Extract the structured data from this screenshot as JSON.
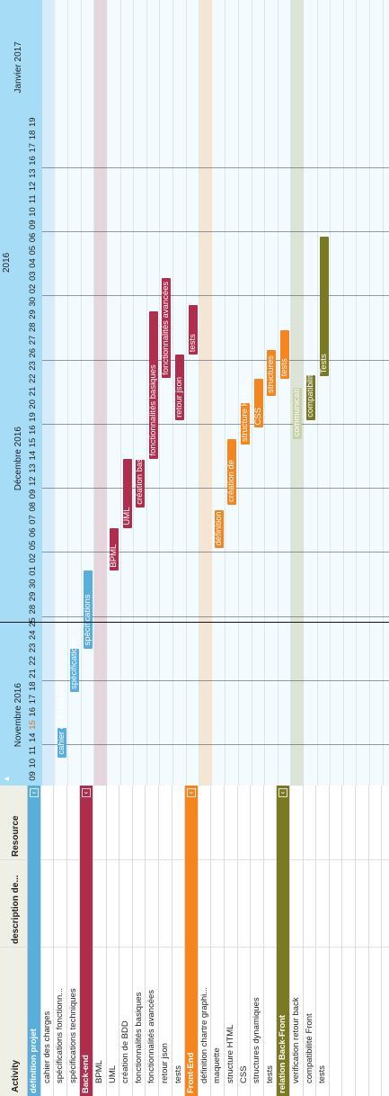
{
  "header": {
    "activity": "Activity",
    "description": "description de...",
    "resource": "Resource"
  },
  "rows": [
    {
      "label": "définition projet",
      "group": true,
      "color": "#5aaedb"
    },
    {
      "label": "cahier des charges"
    },
    {
      "label": "spécifications fonctionn..."
    },
    {
      "label": "spécifications techniques"
    },
    {
      "label": "Back-end",
      "group": true,
      "color": "#b02e4d"
    },
    {
      "label": "BPML"
    },
    {
      "label": "UML"
    },
    {
      "label": "création de BDD"
    },
    {
      "label": "fonctionnalités basiques"
    },
    {
      "label": "fonctionnalités avancées"
    },
    {
      "label": "retour json"
    },
    {
      "label": "tests"
    },
    {
      "label": "Front-End",
      "group": true,
      "color": "#f5851f"
    },
    {
      "label": "définition chartre graphi..."
    },
    {
      "label": "maquette"
    },
    {
      "label": "structure HTML"
    },
    {
      "label": "CSS"
    },
    {
      "label": "structures dynamiques"
    },
    {
      "label": "tests"
    },
    {
      "label": "relation Back-Front",
      "group": true,
      "color": "#7a7a25"
    },
    {
      "label": "verification retour back"
    },
    {
      "label": "compatibilité Front"
    },
    {
      "label": "tests"
    }
  ],
  "timeline": {
    "years": [
      {
        "label": "2016",
        "day": 40
      },
      {
        "label": "2017",
        "day": 98
      }
    ],
    "months": [
      {
        "label": "Novembre 2016",
        "day": 3
      },
      {
        "label": "Décembre 2016",
        "day": 23
      },
      {
        "label": "Janvier 2017",
        "day": 54
      }
    ],
    "day_labels": [
      "09",
      "10",
      "11",
      "14",
      "15",
      "16",
      "17",
      "18",
      "21",
      "22",
      "23",
      "24",
      "25",
      "28",
      "29",
      "30",
      "01",
      "02",
      "05",
      "06",
      "07",
      "08",
      "09",
      "12",
      "13",
      "14",
      "15",
      "16",
      "19",
      "20",
      "21",
      "22",
      "23",
      "26",
      "27",
      "28",
      "29",
      "30",
      "02",
      "03",
      "04",
      "05",
      "06",
      "09",
      "10",
      "11",
      "12",
      "13",
      "16",
      "17",
      "18",
      "19"
    ],
    "today_index": 4,
    "now_index": 12.7
  },
  "bars": [
    {
      "row": 1,
      "start": 2.2,
      "end": 4.5,
      "label": "cahier des charges",
      "color": "#5aaedb"
    },
    {
      "row": 2,
      "start": 7.3,
      "end": 10.7,
      "label": "spécifications",
      "color": "#5aaedb"
    },
    {
      "row": 3,
      "start": 10.7,
      "end": 16.8,
      "label": "spécifications",
      "color": "#5aaedb"
    },
    {
      "row": 5,
      "start": 16.8,
      "end": 20.1,
      "label": "BPML",
      "color": "#b02e4d"
    },
    {
      "row": 6,
      "start": 20.1,
      "end": 25.5,
      "label": "UML",
      "color": "#b02e4d"
    },
    {
      "row": 7,
      "start": 21.7,
      "end": 25.4,
      "label": "création base",
      "color": "#b02e4d"
    },
    {
      "row": 8,
      "start": 25.5,
      "end": 37.0,
      "label": "fonctionnalités basiques",
      "color": "#b02e4d"
    },
    {
      "row": 10,
      "start": 28.5,
      "end": 33.6,
      "label": "retour json",
      "color": "#b02e4d"
    },
    {
      "row": 9,
      "start": 31.8,
      "end": 39.6,
      "label": "fonctionnalités avancées",
      "color": "#b02e4d"
    },
    {
      "row": 11,
      "start": 33.6,
      "end": 37.5,
      "label": "tests",
      "color": "#b02e4d"
    },
    {
      "row": 13,
      "start": 18.5,
      "end": 21.5,
      "label": "définition",
      "color": "#f5851f"
    },
    {
      "row": 14,
      "start": 21.9,
      "end": 27.0,
      "label": "création de",
      "color": "#f5851f"
    },
    {
      "row": 15,
      "start": 26.6,
      "end": 29.8,
      "label": "structure HTML",
      "color": "#f5851f"
    },
    {
      "row": 16,
      "start": 27.9,
      "end": 31.7,
      "label": "CSS",
      "color": "#f5851f"
    },
    {
      "row": 17,
      "start": 30.4,
      "end": 34.0,
      "label": "structures",
      "color": "#f5851f"
    },
    {
      "row": 18,
      "start": 31.7,
      "end": 35.5,
      "label": "tests",
      "color": "#f5851f"
    },
    {
      "row": 20,
      "start": 28.5,
      "end": 32.0,
      "label": "compatibilité",
      "color": "#7a7a25"
    },
    {
      "row": 21,
      "start": 31.9,
      "end": 42.8,
      "label": "Tests",
      "color": "#7a7a25"
    }
  ],
  "group_bands": [
    {
      "row": 19,
      "start": 27.0,
      "end": 31.0,
      "label": "communicati",
      "color": "#c7d2a8"
    }
  ]
}
